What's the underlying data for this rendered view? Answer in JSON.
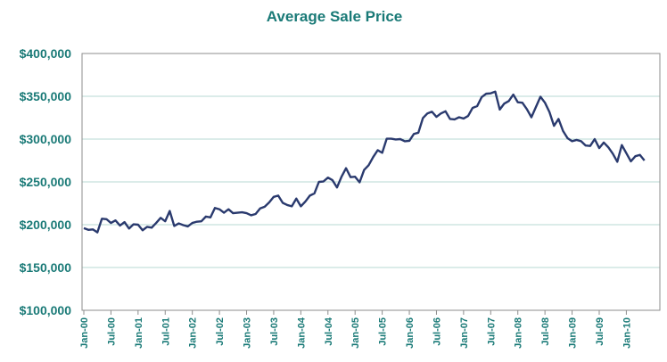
{
  "colors": {
    "text": "#1a7a77",
    "line": "#2a3a6e",
    "grid": "#b7d9d3",
    "frame": "#8c8c8c"
  },
  "chart_data": {
    "type": "line",
    "title": "Average Sale Price",
    "xlabel": "",
    "ylabel": "",
    "ylim": [
      100000,
      400000
    ],
    "yticks": [
      100000,
      150000,
      200000,
      250000,
      300000,
      350000,
      400000
    ],
    "ytick_labels": [
      "$100,000",
      "$150,000",
      "$200,000",
      "$250,000",
      "$300,000",
      "$350,000",
      "$400,000"
    ],
    "grid": true,
    "legend": "none",
    "xtick_labels": [
      "Jan-00",
      "Jul-00",
      "Jan-01",
      "Jul-01",
      "Jan-02",
      "Jul-02",
      "Jan-03",
      "Jul-03",
      "Jan-04",
      "Jul-04",
      "Jan-05",
      "Jul-05",
      "Jan-06",
      "Jul-06",
      "Jan-07",
      "Jul-07",
      "Jan-08",
      "Jul-08",
      "Jan-09",
      "Jul-09",
      "Jan-10"
    ],
    "x_start": "Jan-00",
    "x_end": "Sep-10",
    "series": [
      {
        "values": [
          196000,
          194000,
          194500,
          191000,
          207000,
          206500,
          202000,
          205000,
          199000,
          203000,
          195500,
          200500,
          200000,
          193500,
          197500,
          196500,
          202000,
          208000,
          204000,
          216000,
          198500,
          201500,
          199500,
          198000,
          202000,
          203500,
          204000,
          209500,
          208500,
          219500,
          218000,
          214000,
          218000,
          213500,
          214000,
          214500,
          213500,
          211000,
          212500,
          219000,
          221000,
          226000,
          232500,
          234000,
          225500,
          223000,
          221500,
          230500,
          221500,
          227000,
          234000,
          236500,
          250000,
          250500,
          255000,
          252000,
          243500,
          256000,
          266000,
          255500,
          256000,
          249500,
          264000,
          269500,
          279000,
          287000,
          284000,
          300500,
          300500,
          299500,
          300000,
          297500,
          298000,
          306000,
          307500,
          324500,
          330000,
          332000,
          326000,
          330000,
          332500,
          323500,
          323000,
          325500,
          324000,
          327000,
          336500,
          338500,
          349000,
          353000,
          353500,
          355500,
          334500,
          341500,
          344500,
          352000,
          343000,
          342500,
          335000,
          325500,
          337500,
          349500,
          342500,
          331500,
          315500,
          323500,
          309500,
          301000,
          297500,
          299000,
          297500,
          292500,
          292000,
          300000,
          289500,
          296000,
          290500,
          283000,
          273500,
          293000,
          283500,
          274000,
          280000,
          281500,
          275000
        ]
      }
    ]
  }
}
